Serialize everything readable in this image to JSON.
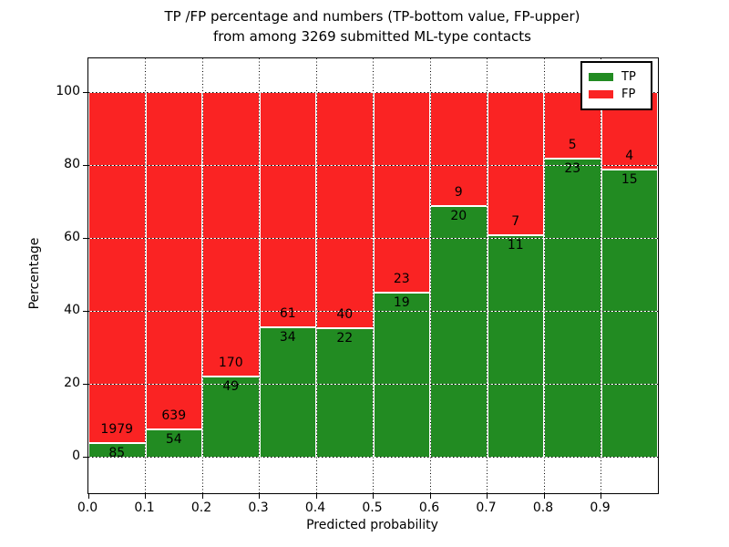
{
  "title": {
    "line1": "TP /FP percentage and numbers (TP-bottom value, FP-upper)",
    "line2": "from among 3269 submitted ML-type contacts"
  },
  "colors": {
    "tp_green": "#228b22",
    "fp_red": "#fa2323",
    "grid_black": "#000000",
    "background": "#ffffff"
  },
  "chart_data": {
    "type": "bar",
    "stacked": true,
    "normalized_to_percent": true,
    "title_line1": "TP /FP percentage and numbers (TP-bottom value, FP-upper)",
    "title_line2": "from among 3269 submitted ML-type contacts",
    "xlabel": "Predicted probability",
    "ylabel": "Percentage",
    "bins": [
      0.0,
      0.1,
      0.2,
      0.3,
      0.4,
      0.5,
      0.6,
      0.7,
      0.8,
      0.9
    ],
    "bin_width": 0.1,
    "series": [
      {
        "name": "TP",
        "color": "#228b22",
        "counts": [
          85,
          54,
          49,
          34,
          22,
          19,
          20,
          11,
          23,
          15
        ]
      },
      {
        "name": "FP",
        "color": "#fa2323",
        "counts": [
          1979,
          639,
          170,
          61,
          40,
          23,
          9,
          7,
          5,
          4
        ]
      }
    ],
    "tp_percent": [
      4.1,
      7.8,
      22.4,
      35.8,
      35.5,
      45.2,
      69.0,
      61.1,
      82.1,
      78.9
    ],
    "total_contacts": 3269,
    "xticks": [
      "0.0",
      "0.1",
      "0.2",
      "0.3",
      "0.4",
      "0.5",
      "0.6",
      "0.7",
      "0.8",
      "0.9"
    ],
    "yticks": [
      0,
      20,
      40,
      60,
      80,
      100
    ],
    "xlim": [
      0.0,
      1.0
    ],
    "ylim": [
      -10,
      109.3
    ],
    "grid": "dotted",
    "legend": {
      "position": "upper right",
      "entries": [
        {
          "label": "TP",
          "color": "#228b22"
        },
        {
          "label": "FP",
          "color": "#fa2323"
        }
      ]
    }
  }
}
